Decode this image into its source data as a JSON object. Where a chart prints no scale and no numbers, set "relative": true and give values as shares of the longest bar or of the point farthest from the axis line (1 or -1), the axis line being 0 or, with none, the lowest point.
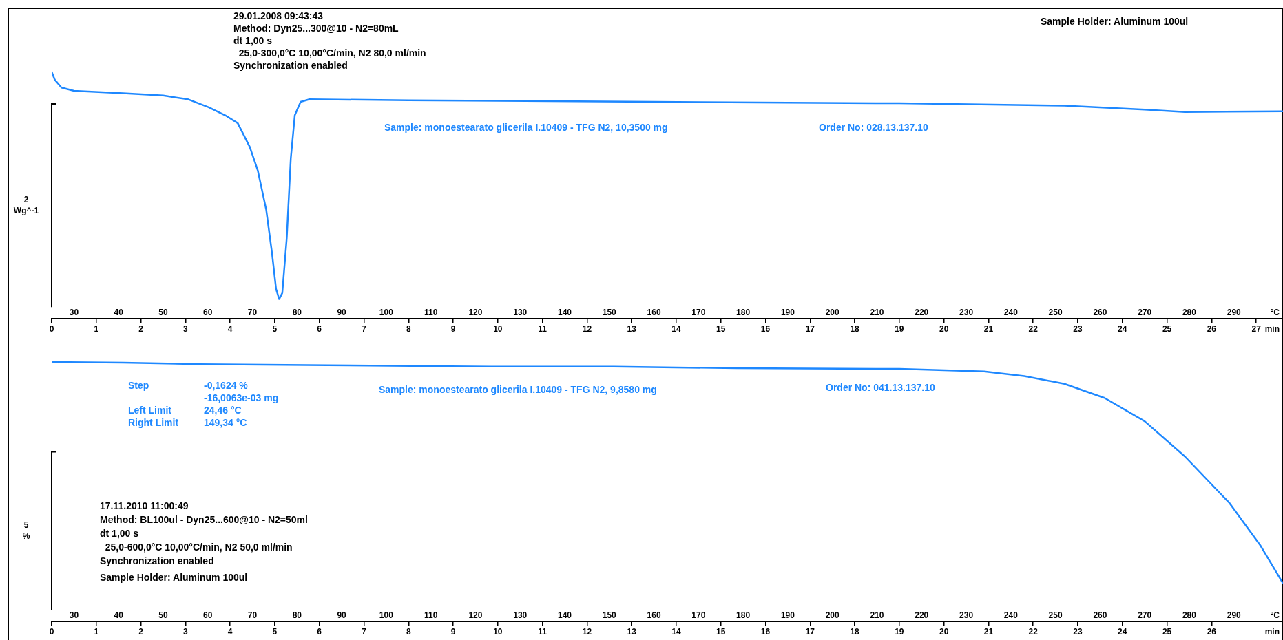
{
  "chart_data": [
    {
      "type": "line",
      "relative": true,
      "color": "#1e88ff",
      "ylabel": "2 Wg^-1",
      "xlabel": "min",
      "x2label": "°C",
      "xlim": [
        0,
        27.6
      ],
      "xticks": [
        0,
        1,
        2,
        3,
        4,
        5,
        6,
        7,
        8,
        9,
        10,
        11,
        12,
        13,
        14,
        15,
        16,
        17,
        18,
        19,
        20,
        21,
        22,
        23,
        24,
        25,
        26,
        27
      ],
      "x2lim": [
        25,
        301
      ],
      "x2ticks": [
        30,
        40,
        50,
        60,
        70,
        80,
        90,
        100,
        110,
        120,
        130,
        140,
        150,
        160,
        170,
        180,
        190,
        200,
        210,
        220,
        230,
        240,
        250,
        260,
        270,
        280,
        290
      ],
      "x": [
        0,
        0.07,
        0.22,
        0.5,
        1.6,
        2.5,
        3.06,
        3.52,
        3.89,
        4.17,
        4.44,
        4.62,
        4.81,
        4.94,
        5.03,
        5.1,
        5.17,
        5.27,
        5.36,
        5.45,
        5.58,
        5.78,
        8.0,
        13.5,
        19.0,
        22.7,
        24.5,
        25.4,
        27.6
      ],
      "values": [
        1.0,
        0.966,
        0.933,
        0.919,
        0.909,
        0.899,
        0.883,
        0.849,
        0.815,
        0.782,
        0.681,
        0.581,
        0.413,
        0.228,
        0.077,
        0.034,
        0.06,
        0.295,
        0.631,
        0.815,
        0.872,
        0.883,
        0.879,
        0.872,
        0.866,
        0.856,
        0.839,
        0.829,
        0.832
      ],
      "annotations": [
        "29.01.2008 09:43:43\nMethod: Dyn25...300@10 - N2=80mL\ndt 1,00 s\n  25,0-300,0°C 10,00°C/min, N2 80,0 ml/min\nSynchronization enabled",
        "Sample Holder: Aluminum 100ul",
        "Sample: monoestearato glicerila I.10409 - TFG N2, 10,3500 mg",
        "Order No: 028.13.137.10"
      ]
    },
    {
      "type": "line",
      "relative": true,
      "color": "#1e88ff",
      "ylabel": "5 %",
      "xlabel": "min",
      "x2label": "°C",
      "xlim": [
        0,
        27.6
      ],
      "xticks": [
        0,
        1,
        2,
        3,
        4,
        5,
        6,
        7,
        8,
        9,
        10,
        11,
        12,
        13,
        14,
        15,
        16,
        17,
        18,
        19,
        20,
        21,
        22,
        23,
        24,
        25,
        26
      ],
      "x2lim": [
        25,
        301
      ],
      "x2ticks": [
        30,
        40,
        50,
        60,
        70,
        80,
        90,
        100,
        110,
        120,
        130,
        140,
        150,
        160,
        170,
        180,
        190,
        200,
        210,
        220,
        230,
        240,
        250,
        260,
        270,
        280,
        290
      ],
      "x": [
        0,
        1.6,
        3.34,
        6.18,
        9.85,
        12.6,
        15.36,
        19.0,
        20.9,
        21.8,
        22.7,
        23.6,
        24.5,
        25.4,
        26.4,
        27.1,
        27.6
      ],
      "values": [
        1,
        0.997,
        0.991,
        0.987,
        0.981,
        0.981,
        0.975,
        0.972,
        0.962,
        0.943,
        0.912,
        0.855,
        0.761,
        0.619,
        0.431,
        0.258,
        0.107
      ],
      "annotations": [
        "Step\t-0,1624 %\n\t-16,0063e-03 mg\nLeft Limit\t24,46 °C\nRight Limit\t149,34 °C",
        "Sample: monoestearato glicerila I.10409 - TFG N2, 9,8580 mg",
        "Order No: 041.13.137.10",
        "17.11.2010 11:00:49\nMethod: BL100ul - Dyn25...600@10 - N2=50ml\ndt 1,00 s\n  25,0-600,0°C 10,00°C/min, N2 50,0 ml/min\nSynchronization enabled\nSample Holder: Aluminum 100ul"
      ]
    }
  ]
}
